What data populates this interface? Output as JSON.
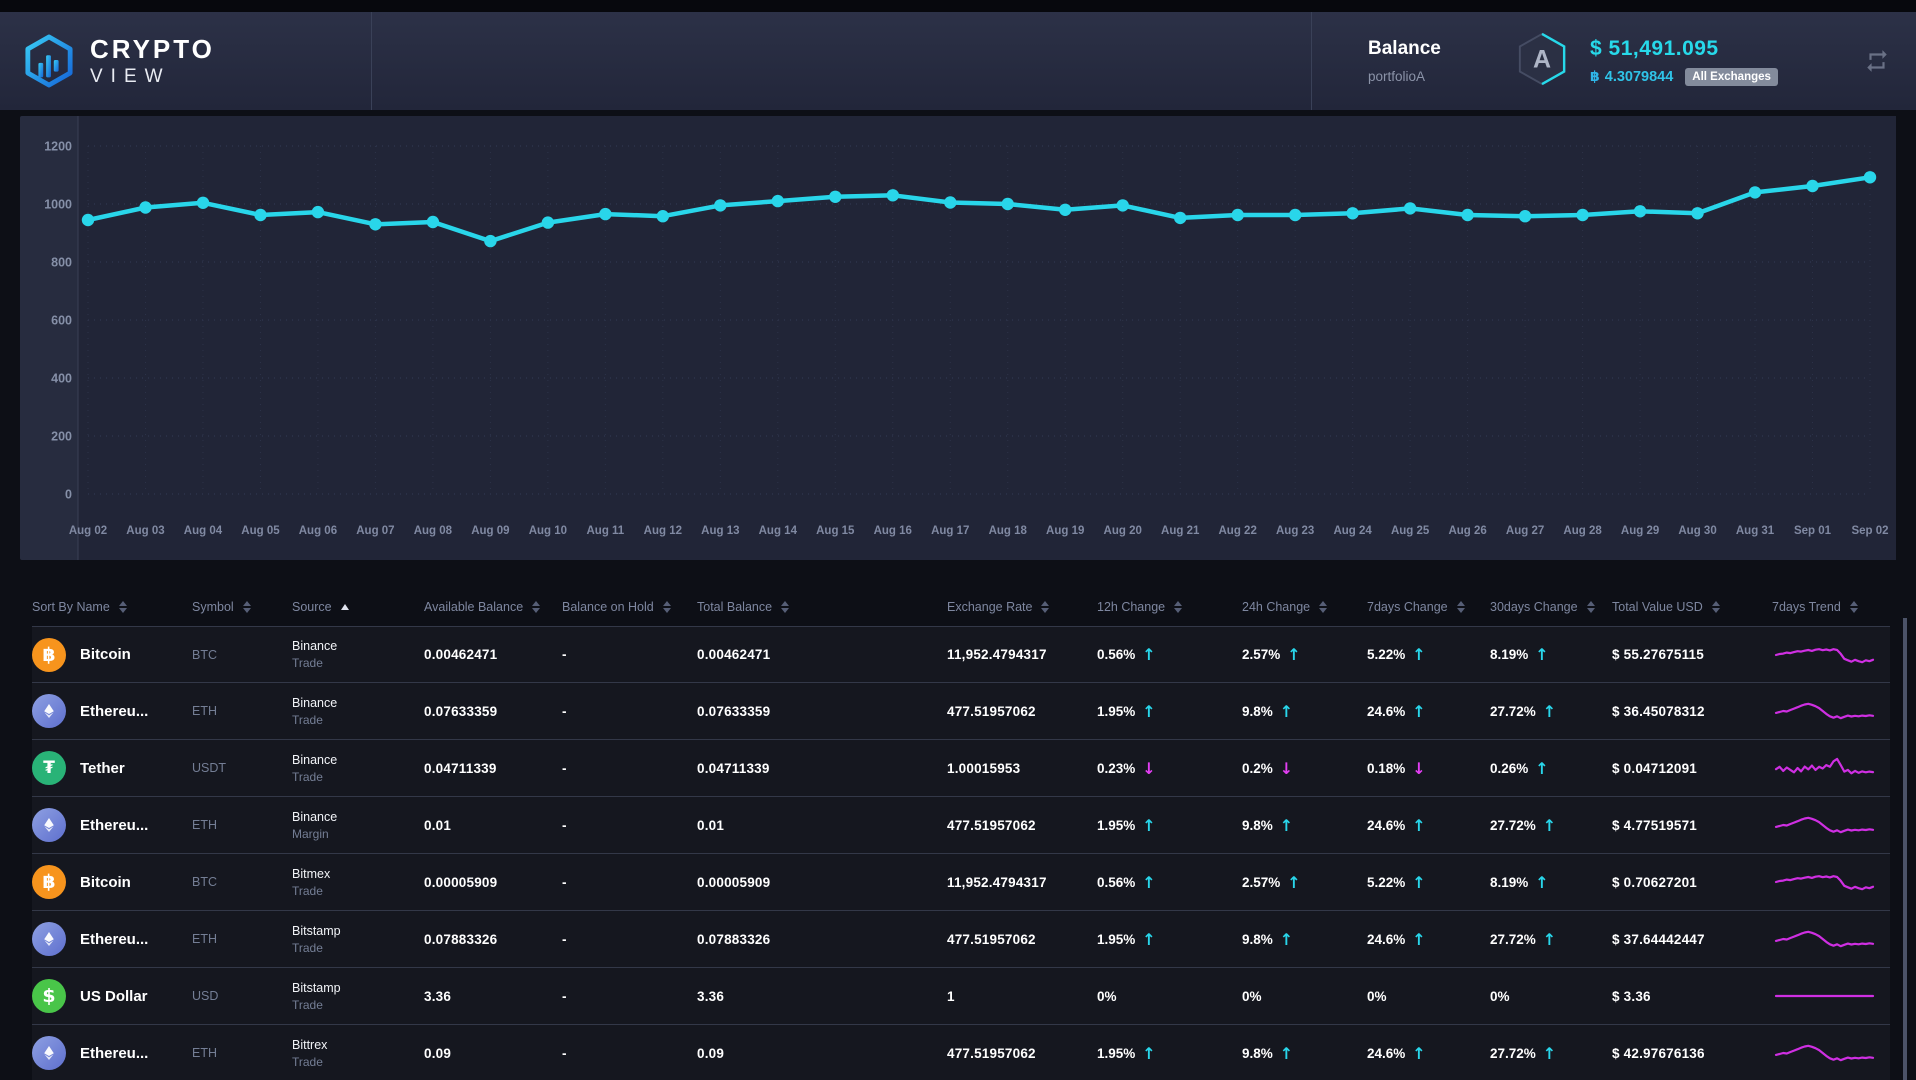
{
  "header": {
    "logo": {
      "line1": "CRYPTO",
      "line2": "VIEW"
    },
    "balance_label": "Balance",
    "portfolio_name": "portfolioA",
    "portfolio_badge": "A",
    "balance_usd": "$ 51,491.095",
    "btc_symbol": "฿",
    "balance_btc": "4.3079844",
    "exchanges_badge": "All Exchanges"
  },
  "colors": {
    "accent_cyan": "#29d6ea",
    "accent_magenta": "#cf2fe2",
    "up_arrow": "#29d6ea",
    "down_arrow": "#e23ef2",
    "btc": "#f7941d",
    "eth": "#6b80d6",
    "usdt": "#29b377",
    "usd": "#49c549"
  },
  "chart_data": {
    "type": "line",
    "title": "",
    "xlabel": "",
    "ylabel": "",
    "grid": true,
    "legend": false,
    "ylim": [
      0,
      1200
    ],
    "yticks": [
      0,
      200,
      400,
      600,
      800,
      1000,
      1200
    ],
    "x": [
      "Aug 02",
      "Aug 03",
      "Aug 04",
      "Aug 05",
      "Aug 06",
      "Aug 07",
      "Aug 08",
      "Aug 09",
      "Aug 10",
      "Aug 11",
      "Aug 12",
      "Aug 13",
      "Aug 14",
      "Aug 15",
      "Aug 16",
      "Aug 17",
      "Aug 18",
      "Aug 19",
      "Aug 20",
      "Aug 21",
      "Aug 22",
      "Aug 23",
      "Aug 24",
      "Aug 25",
      "Aug 26",
      "Aug 27",
      "Aug 28",
      "Aug 29",
      "Aug 30",
      "Aug 31",
      "Sep 01",
      "Sep 02"
    ],
    "series": [
      {
        "name": "Portfolio Value",
        "values": [
          945,
          988,
          1004,
          962,
          972,
          930,
          938,
          872,
          936,
          965,
          958,
          995,
          1010,
          1025,
          1030,
          1005,
          1000,
          980,
          995,
          952,
          962,
          962,
          968,
          985,
          962,
          958,
          962,
          975,
          968,
          1040,
          1062,
          1092
        ]
      }
    ]
  },
  "table": {
    "columns": [
      {
        "label": "Sort By Name",
        "sort": "both"
      },
      {
        "label": "Symbol",
        "sort": "both"
      },
      {
        "label": "Source",
        "sort": "asc"
      },
      {
        "label": "Available Balance",
        "sort": "both"
      },
      {
        "label": "Balance on Hold",
        "sort": "both"
      },
      {
        "label": "Total Balance",
        "sort": "both"
      },
      {
        "label": "Exchange Rate",
        "sort": "both"
      },
      {
        "label": "12h Change",
        "sort": "both"
      },
      {
        "label": "24h Change",
        "sort": "both"
      },
      {
        "label": "7days Change",
        "sort": "both"
      },
      {
        "label": "30days Change",
        "sort": "both"
      },
      {
        "label": "Total Value USD",
        "sort": "both"
      },
      {
        "label": "7days Trend",
        "sort": "both"
      }
    ],
    "trends": {
      "btc": [
        0.5,
        0.54,
        0.56,
        0.6,
        0.58,
        0.62,
        0.66,
        0.64,
        0.68,
        0.71,
        0.67,
        0.72,
        0.74,
        0.7,
        0.73,
        0.69,
        0.74,
        0.71,
        0.55,
        0.34,
        0.28,
        0.22,
        0.3,
        0.24,
        0.2,
        0.28,
        0.24,
        0.3
      ],
      "eth": [
        0.42,
        0.46,
        0.5,
        0.48,
        0.54,
        0.6,
        0.66,
        0.72,
        0.77,
        0.8,
        0.76,
        0.7,
        0.62,
        0.5,
        0.38,
        0.28,
        0.22,
        0.28,
        0.2,
        0.26,
        0.31,
        0.27,
        0.3,
        0.28,
        0.31,
        0.29,
        0.32,
        0.3
      ],
      "usdt": [
        0.45,
        0.55,
        0.38,
        0.52,
        0.42,
        0.32,
        0.5,
        0.36,
        0.56,
        0.44,
        0.6,
        0.42,
        0.55,
        0.48,
        0.62,
        0.55,
        0.78,
        0.88,
        0.62,
        0.35,
        0.42,
        0.28,
        0.38,
        0.3,
        0.36,
        0.32,
        0.35,
        0.33
      ],
      "flat": [
        0.5,
        0.5,
        0.5,
        0.5,
        0.5,
        0.5,
        0.5,
        0.5,
        0.5,
        0.5,
        0.5,
        0.5,
        0.5,
        0.5,
        0.5,
        0.5,
        0.5,
        0.5,
        0.5,
        0.5,
        0.5,
        0.5,
        0.5,
        0.5,
        0.5,
        0.5,
        0.5,
        0.5
      ]
    },
    "rows": [
      {
        "name": "Bitcoin",
        "coin": "btc",
        "icon_glyph": "฿",
        "symbol": "BTC",
        "source": "Binance",
        "account": "Trade",
        "available": "0.00462471",
        "on_hold": "-",
        "total": "0.00462471",
        "rate": "11,952.4794317",
        "change_12h": {
          "value": "0.56%",
          "dir": "up"
        },
        "change_24h": {
          "value": "2.57%",
          "dir": "up"
        },
        "change_7d": {
          "value": "5.22%",
          "dir": "up"
        },
        "change_30d": {
          "value": "8.19%",
          "dir": "up"
        },
        "total_usd": "$ 55.27675115",
        "trend": "btc"
      },
      {
        "name": "Ethereu...",
        "coin": "eth",
        "icon_glyph": "",
        "symbol": "ETH",
        "source": "Binance",
        "account": "Trade",
        "available": "0.07633359",
        "on_hold": "-",
        "total": "0.07633359",
        "rate": "477.51957062",
        "change_12h": {
          "value": "1.95%",
          "dir": "up"
        },
        "change_24h": {
          "value": "9.8%",
          "dir": "up"
        },
        "change_7d": {
          "value": "24.6%",
          "dir": "up"
        },
        "change_30d": {
          "value": "27.72%",
          "dir": "up"
        },
        "total_usd": "$ 36.45078312",
        "trend": "eth"
      },
      {
        "name": "Tether",
        "coin": "usdt",
        "icon_glyph": "₮",
        "symbol": "USDT",
        "source": "Binance",
        "account": "Trade",
        "available": "0.04711339",
        "on_hold": "-",
        "total": "0.04711339",
        "rate": "1.00015953",
        "change_12h": {
          "value": "0.23%",
          "dir": "down"
        },
        "change_24h": {
          "value": "0.2%",
          "dir": "down"
        },
        "change_7d": {
          "value": "0.18%",
          "dir": "down"
        },
        "change_30d": {
          "value": "0.26%",
          "dir": "up"
        },
        "total_usd": "$ 0.04712091",
        "trend": "usdt"
      },
      {
        "name": "Ethereu...",
        "coin": "eth",
        "icon_glyph": "",
        "symbol": "ETH",
        "source": "Binance",
        "account": "Margin",
        "available": "0.01",
        "on_hold": "-",
        "total": "0.01",
        "rate": "477.51957062",
        "change_12h": {
          "value": "1.95%",
          "dir": "up"
        },
        "change_24h": {
          "value": "9.8%",
          "dir": "up"
        },
        "change_7d": {
          "value": "24.6%",
          "dir": "up"
        },
        "change_30d": {
          "value": "27.72%",
          "dir": "up"
        },
        "total_usd": "$ 4.77519571",
        "trend": "eth"
      },
      {
        "name": "Bitcoin",
        "coin": "btc",
        "icon_glyph": "฿",
        "symbol": "BTC",
        "source": "Bitmex",
        "account": "Trade",
        "available": "0.00005909",
        "on_hold": "-",
        "total": "0.00005909",
        "rate": "11,952.4794317",
        "change_12h": {
          "value": "0.56%",
          "dir": "up"
        },
        "change_24h": {
          "value": "2.57%",
          "dir": "up"
        },
        "change_7d": {
          "value": "5.22%",
          "dir": "up"
        },
        "change_30d": {
          "value": "8.19%",
          "dir": "up"
        },
        "total_usd": "$ 0.70627201",
        "trend": "btc"
      },
      {
        "name": "Ethereu...",
        "coin": "eth",
        "icon_glyph": "",
        "symbol": "ETH",
        "source": "Bitstamp",
        "account": "Trade",
        "available": "0.07883326",
        "on_hold": "-",
        "total": "0.07883326",
        "rate": "477.51957062",
        "change_12h": {
          "value": "1.95%",
          "dir": "up"
        },
        "change_24h": {
          "value": "9.8%",
          "dir": "up"
        },
        "change_7d": {
          "value": "24.6%",
          "dir": "up"
        },
        "change_30d": {
          "value": "27.72%",
          "dir": "up"
        },
        "total_usd": "$ 37.64442447",
        "trend": "eth"
      },
      {
        "name": "US Dollar",
        "coin": "usd",
        "icon_glyph": "$",
        "symbol": "USD",
        "source": "Bitstamp",
        "account": "Trade",
        "available": "3.36",
        "on_hold": "-",
        "total": "3.36",
        "rate": "1",
        "change_12h": {
          "value": "0%",
          "dir": "none"
        },
        "change_24h": {
          "value": "0%",
          "dir": "none"
        },
        "change_7d": {
          "value": "0%",
          "dir": "none"
        },
        "change_30d": {
          "value": "0%",
          "dir": "none"
        },
        "total_usd": "$ 3.36",
        "trend": "flat"
      },
      {
        "name": "Ethereu...",
        "coin": "eth",
        "icon_glyph": "",
        "symbol": "ETH",
        "source": "Bittrex",
        "account": "Trade",
        "available": "0.09",
        "on_hold": "-",
        "total": "0.09",
        "rate": "477.51957062",
        "change_12h": {
          "value": "1.95%",
          "dir": "up"
        },
        "change_24h": {
          "value": "9.8%",
          "dir": "up"
        },
        "change_7d": {
          "value": "24.6%",
          "dir": "up"
        },
        "change_30d": {
          "value": "27.72%",
          "dir": "up"
        },
        "total_usd": "$ 42.97676136",
        "trend": "eth"
      }
    ]
  }
}
